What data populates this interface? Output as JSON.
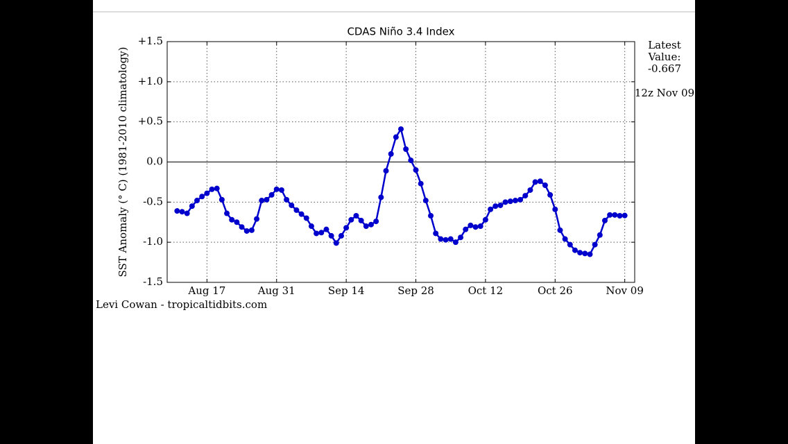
{
  "chart_data": {
    "type": "line",
    "title": "CDAS Niño 3.4 Index",
    "y_label": "SST Anomaly (° C) (1981-2010 climatology)",
    "annotations": [
      "Latest",
      "Value:",
      "-0.667",
      "12z Nov 09"
    ],
    "credit": "Levi Cowan - tropicaltidbits.com",
    "color": "#0000cc",
    "grid": true,
    "x": [
      -6,
      -5,
      -4,
      -3,
      -2,
      -1,
      0,
      1,
      2,
      3,
      4,
      5,
      6,
      7,
      8,
      9,
      10,
      11,
      12,
      13,
      14,
      15,
      16,
      17,
      18,
      19,
      20,
      21,
      22,
      23,
      24,
      25,
      26,
      27,
      28,
      29,
      30,
      31,
      32,
      33,
      34,
      35,
      36,
      37,
      38,
      39,
      40,
      41,
      42,
      43,
      44,
      45,
      46,
      47,
      48,
      49,
      50,
      51,
      52,
      53,
      54,
      55,
      56,
      57,
      58,
      59,
      60,
      61,
      62,
      63,
      64,
      65,
      66,
      67,
      68,
      69,
      70,
      71,
      72,
      73,
      74,
      75,
      76,
      77,
      78,
      79,
      80,
      81,
      82,
      83,
      84
    ],
    "values": [
      -0.61,
      -0.62,
      -0.64,
      -0.55,
      -0.48,
      -0.43,
      -0.39,
      -0.34,
      -0.33,
      -0.47,
      -0.64,
      -0.72,
      -0.75,
      -0.81,
      -0.86,
      -0.85,
      -0.71,
      -0.48,
      -0.47,
      -0.41,
      -0.34,
      -0.35,
      -0.47,
      -0.54,
      -0.6,
      -0.65,
      -0.7,
      -0.8,
      -0.89,
      -0.88,
      -0.84,
      -0.92,
      -1.01,
      -0.92,
      -0.82,
      -0.72,
      -0.67,
      -0.73,
      -0.8,
      -0.78,
      -0.74,
      -0.44,
      -0.11,
      0.1,
      0.31,
      0.41,
      0.16,
      0.02,
      -0.1,
      -0.27,
      -0.48,
      -0.67,
      -0.89,
      -0.96,
      -0.97,
      -0.96,
      -1.0,
      -0.94,
      -0.84,
      -0.79,
      -0.81,
      -0.8,
      -0.72,
      -0.59,
      -0.55,
      -0.54,
      -0.5,
      -0.49,
      -0.48,
      -0.47,
      -0.42,
      -0.35,
      -0.25,
      -0.24,
      -0.29,
      -0.41,
      -0.59,
      -0.85,
      -0.96,
      -1.03,
      -1.1,
      -1.13,
      -1.14,
      -1.15,
      -1.03,
      -0.91,
      -0.73,
      -0.66,
      -0.66,
      -0.67,
      -0.667
    ],
    "xlim": [
      -8,
      86
    ],
    "xticks": [
      {
        "value": 0,
        "label": "Aug 17"
      },
      {
        "value": 14,
        "label": "Aug 31"
      },
      {
        "value": 28,
        "label": "Sep 14"
      },
      {
        "value": 42,
        "label": "Sep 28"
      },
      {
        "value": 56,
        "label": "Oct 12"
      },
      {
        "value": 70,
        "label": "Oct 26"
      },
      {
        "value": 84,
        "label": "Nov 09"
      }
    ],
    "ylim": [
      -1.5,
      1.5
    ],
    "yticks": [
      {
        "value": -1.5,
        "label": "-1.5"
      },
      {
        "value": -1,
        "label": "-1.0"
      },
      -0.5,
      {
        "value": 0,
        "label": "0.0"
      },
      {
        "value": 0.5,
        "label": "+0.5"
      },
      {
        "value": 1,
        "label": "+1.0"
      },
      {
        "value": 1.5,
        "label": "+1.5"
      }
    ]
  }
}
